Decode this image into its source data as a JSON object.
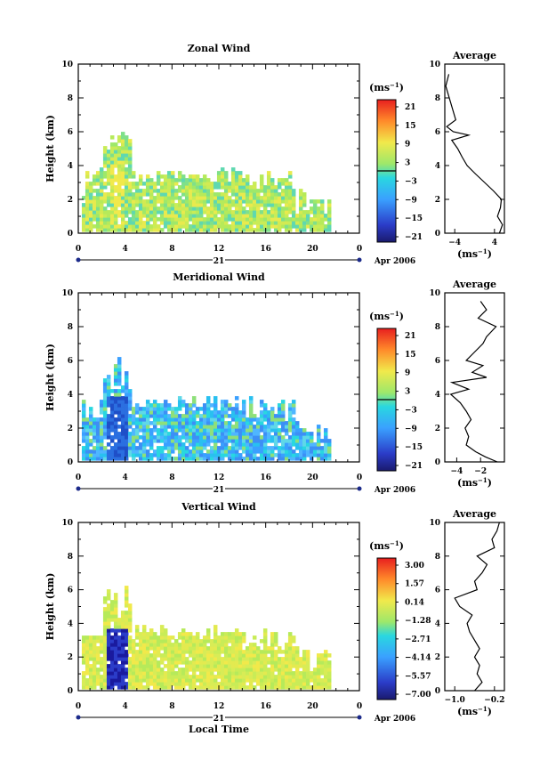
{
  "figure": {
    "xlabel": "Local Time",
    "x_ticks": [
      "0",
      "4",
      "8",
      "12",
      "16",
      "20",
      "0"
    ],
    "date_label": "21",
    "month_label": "Apr 2006",
    "avg_xlabel": "(ms",
    "avg_xlabel_exp": "−1",
    "avg_xlabel_close": ")"
  },
  "chart_data": [
    {
      "type": "heatmap",
      "title": "Zonal Wind",
      "ylabel": "Height (km)",
      "y_ticks": [
        "0",
        "2",
        "4",
        "6",
        "8",
        "10"
      ],
      "ylim": [
        0,
        10
      ],
      "xlim": [
        0,
        24
      ],
      "colorbar_unit": "(ms",
      "colorbar_exp": "−1",
      "colorbar_close": ")",
      "colorbar_ticks": [
        "21",
        "15",
        "9",
        "3",
        "−3",
        "−9",
        "−15",
        "−21"
      ],
      "zero_line_level": 0,
      "average_title": "Average",
      "average_xticks": [
        "−4",
        "4"
      ],
      "average_xlim": [
        -6,
        6
      ],
      "average_profile": {
        "height": [
          0,
          0.5,
          1,
          1.5,
          2,
          2.5,
          3,
          3.5,
          4,
          4.5,
          5,
          5.5,
          5.8,
          6,
          6.3,
          6.7,
          8.7,
          9.4
        ],
        "value": [
          5,
          5.6,
          4.6,
          5.2,
          5.4,
          3.8,
          2,
          0.2,
          -1.5,
          -2.5,
          -3.4,
          -4.6,
          -1.2,
          -4.3,
          -5.6,
          -3.8,
          -5.8,
          -5.2
        ]
      }
    },
    {
      "type": "heatmap",
      "title": "Meridional Wind",
      "ylabel": "Height (km)",
      "y_ticks": [
        "0",
        "2",
        "4",
        "6",
        "8",
        "10"
      ],
      "ylim": [
        0,
        10
      ],
      "xlim": [
        0,
        24
      ],
      "colorbar_unit": "(ms",
      "colorbar_exp": "−1",
      "colorbar_close": ")",
      "colorbar_ticks": [
        "21",
        "15",
        "9",
        "3",
        "−3",
        "−9",
        "−15",
        "−21"
      ],
      "zero_line_level": 0,
      "average_title": "Average",
      "average_xticks": [
        "−4",
        "−2"
      ],
      "average_xlim": [
        -5,
        0
      ],
      "average_profile": {
        "height": [
          0,
          0.3,
          0.6,
          1,
          1.5,
          2,
          2.5,
          3,
          3.5,
          4,
          4.3,
          4.7,
          5,
          5.3,
          5.7,
          6,
          6.5,
          7,
          7.4,
          8,
          8.5,
          9,
          9.5
        ],
        "value": [
          -0.6,
          -1.6,
          -2.4,
          -3.2,
          -3.0,
          -3.3,
          -2.8,
          -3.2,
          -3.7,
          -4.5,
          -3.0,
          -4.4,
          -1.5,
          -2.7,
          -1.8,
          -3.2,
          -2.5,
          -1.8,
          -1.5,
          -0.7,
          -2.2,
          -1.5,
          -2.0
        ]
      }
    },
    {
      "type": "heatmap",
      "title": "Vertical Wind",
      "ylabel": "Height (km)",
      "y_ticks": [
        "0",
        "2",
        "4",
        "6",
        "8",
        "10"
      ],
      "ylim": [
        0,
        10
      ],
      "xlim": [
        0,
        24
      ],
      "colorbar_unit": "(ms",
      "colorbar_exp": "−1",
      "colorbar_close": ")",
      "colorbar_ticks": [
        "3.00",
        "1.57",
        "0.14",
        "−1.28",
        "−2.71",
        "−4.14",
        "−5.57",
        "−7.00"
      ],
      "zero_line_level": null,
      "average_title": "Average",
      "average_xticks": [
        "−1.0",
        "−0.2"
      ],
      "average_xlim": [
        -1.2,
        0.0
      ],
      "average_profile": {
        "height": [
          0,
          0.5,
          1,
          1.5,
          2,
          2.5,
          3,
          3.5,
          4,
          4.5,
          5,
          5.5,
          6,
          6.5,
          7,
          7.5,
          8,
          8.5,
          9,
          9.5,
          10
        ],
        "value": [
          -0.6,
          -0.45,
          -0.55,
          -0.5,
          -0.6,
          -0.5,
          -0.6,
          -0.7,
          -0.75,
          -0.65,
          -0.9,
          -1.0,
          -0.55,
          -0.6,
          -0.45,
          -0.35,
          -0.55,
          -0.2,
          -0.25,
          -0.15,
          -0.1
        ]
      }
    }
  ]
}
